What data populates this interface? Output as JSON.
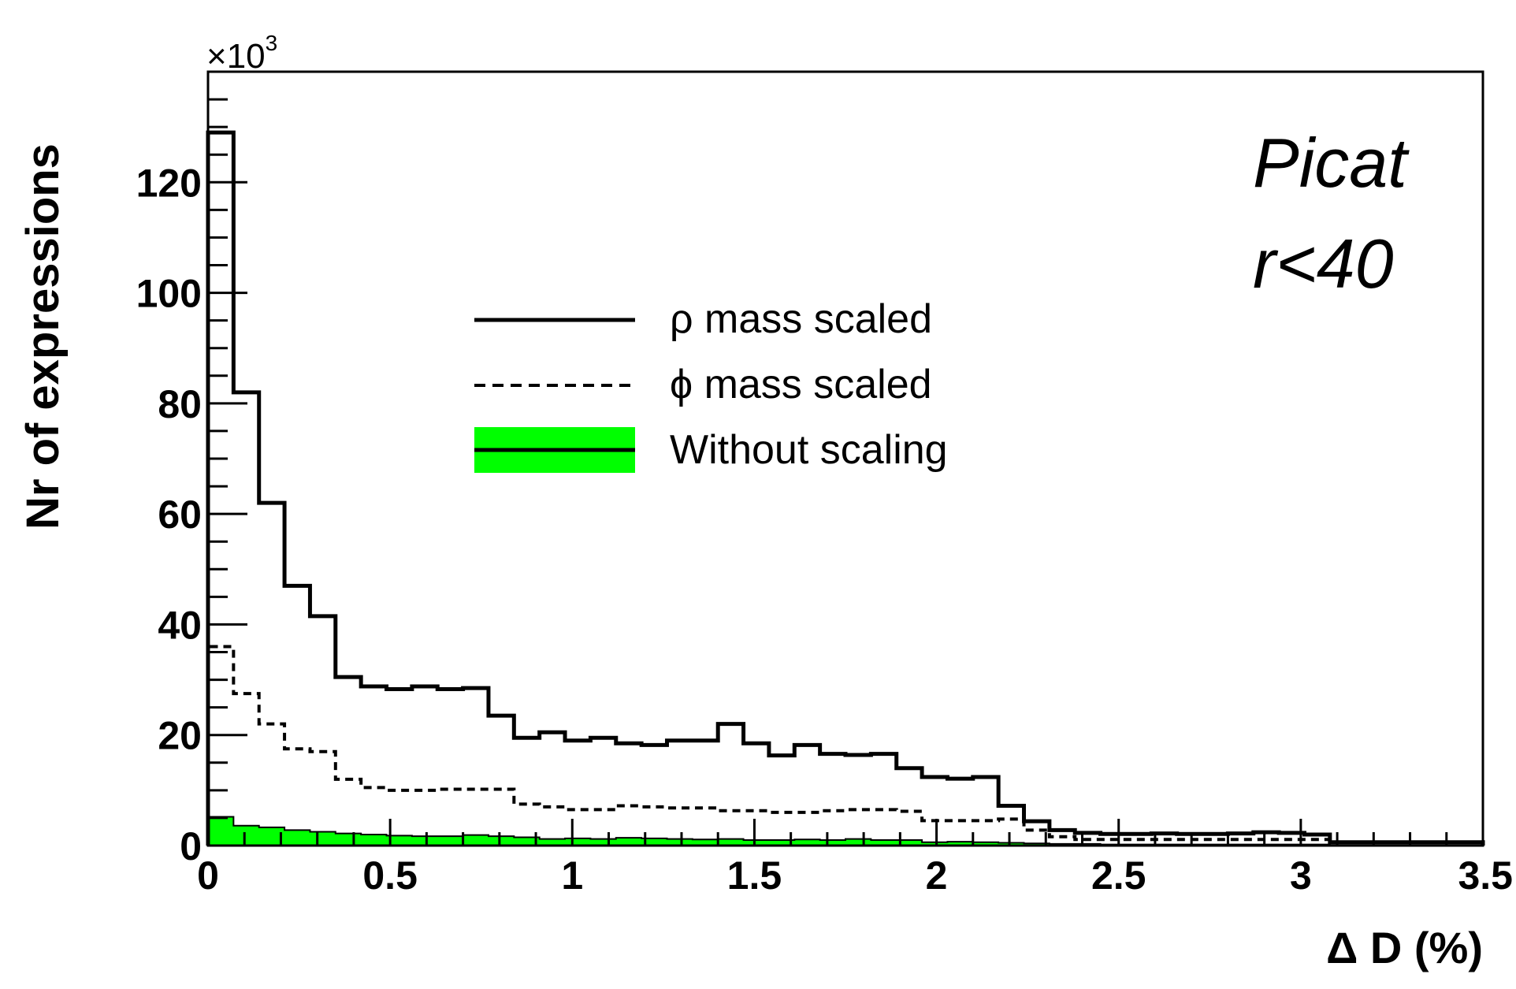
{
  "chart_data": {
    "type": "histogram",
    "ylabel": "Nr of expressions",
    "xlabel": "Δ D (%)",
    "y_multiplier": "×10",
    "y_multiplier_exp": "3",
    "xlim": [
      0,
      3.5
    ],
    "ylim": [
      0,
      140
    ],
    "bin_width": 0.07,
    "x_ticks": [
      "0",
      "0.5",
      "1",
      "1.5",
      "2",
      "2.5",
      "3",
      "3.5"
    ],
    "x_tick_values": [
      0,
      0.5,
      1,
      1.5,
      2,
      2.5,
      3,
      3.5
    ],
    "y_ticks": [
      "0",
      "20",
      "40",
      "60",
      "80",
      "100",
      "120"
    ],
    "y_tick_values": [
      0,
      20,
      40,
      60,
      80,
      100,
      120
    ],
    "annotation": {
      "line1": "Picat",
      "line2": "r<40"
    },
    "series": [
      {
        "name": "ρ mass scaled",
        "style": "solid",
        "color": "#000000",
        "values": [
          129,
          82,
          62,
          47,
          41.5,
          30.5,
          28.8,
          28.3,
          28.8,
          28.3,
          28.5,
          23.5,
          19.5,
          20.5,
          19,
          19.5,
          18.5,
          18.2,
          19,
          19,
          22,
          18.5,
          16.3,
          18.2,
          16.6,
          16.4,
          16.6,
          14,
          12.4,
          12.1,
          12.4,
          7.2,
          4.4,
          2.8,
          2.3,
          2.1,
          2.1,
          2.2,
          2.1,
          2.1,
          2.2,
          2.4,
          2.3,
          2.0,
          0.6,
          0.6,
          0.6,
          0.6,
          0.6,
          0.6
        ]
      },
      {
        "name": "ϕ mass scaled",
        "style": "dashed",
        "color": "#000000",
        "values": [
          36,
          27.5,
          22,
          17.5,
          17,
          12,
          10.5,
          10,
          10,
          10.2,
          10.2,
          10.2,
          7.5,
          7,
          6.5,
          6.5,
          7.2,
          7.0,
          6.8,
          6.8,
          6.3,
          6.3,
          6.0,
          6.0,
          6.3,
          6.5,
          6.5,
          6.2,
          4.5,
          4.5,
          4.5,
          4.8,
          2.8,
          1.6,
          1.1,
          1.1,
          1.1,
          1.1,
          1.1,
          1.1,
          1.1,
          1.1,
          1.1,
          1.1,
          0.6,
          0.6,
          0.6,
          0.6,
          0.6,
          0.6
        ]
      },
      {
        "name": "Without scaling",
        "style": "filled",
        "color": "#00ff00",
        "values": [
          5.2,
          3.6,
          3.3,
          2.8,
          2.5,
          2.2,
          2.0,
          1.8,
          1.7,
          1.7,
          1.9,
          1.7,
          1.5,
          1.2,
          1.3,
          1.2,
          1.4,
          1.3,
          1.2,
          1.1,
          1.2,
          1.0,
          1.0,
          1.1,
          1.0,
          1.2,
          1.0,
          1.0,
          0.6,
          0.7,
          0.6,
          0.5,
          0.4,
          0.3,
          0.3,
          0.2,
          0.2,
          0.2,
          0.2,
          0.2,
          0.2,
          0.2,
          0.2,
          0.2,
          0.1,
          0.1,
          0.1,
          0.1,
          0.1,
          0.1
        ]
      }
    ]
  }
}
